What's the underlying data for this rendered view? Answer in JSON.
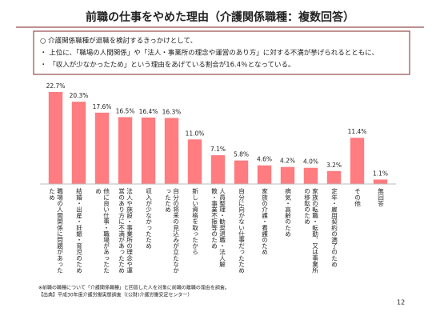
{
  "chart_data": {
    "type": "bar",
    "title": "前職の仕事をやめた理由（介護関係職種：複数回答）",
    "summary": [
      "○ 介護関係職種が退職を検討するきっかけとして、",
      "・ 上位に、「職場の人間関係」や「法人・事業所の理念や運営のあり方」に対する不満が挙げられるとともに、",
      "・ 「収入が少なかったため」という理由をあげている割合が16.4％となっている。"
    ],
    "categories": [
      "職場の人間関係に問題があったため",
      "結婚・出産・妊娠・育児のため",
      "他に良い仕事・職場があったため",
      "法人や施設・事業所の理念や運営のあり方に不満があったため",
      "収入が少なかったため",
      "自分の将来の見込みが立たなかったため",
      "新しい資格を取ったから",
      "人員整理・勧奨退職・法人解散・事業不振等のため",
      "自分に向かない仕事だったため",
      "家族の介護・看護のため",
      "病気・高齢のため",
      "家族の転職・転勤、又は事業所の移転のため",
      "定年・雇用契約の満了のため",
      "その他",
      "無回答"
    ],
    "values": [
      22.7,
      20.3,
      17.6,
      16.5,
      16.4,
      16.3,
      11.0,
      7.1,
      5.8,
      4.6,
      4.2,
      4.0,
      3.2,
      11.4,
      1.1
    ],
    "value_labels": [
      "22.7%",
      "20.3%",
      "17.6%",
      "16.5%",
      "16.4%",
      "16.3%",
      "11.0%",
      "7.1%",
      "5.8%",
      "4.6%",
      "4.2%",
      "4.0%",
      "3.2%",
      "11.4%",
      "1.1%"
    ],
    "color": "#ff7c80",
    "notes": [
      "※前職の職種について「介護関係職種」と回答した人を対象に前職の離職の理由を調査。",
      "【出典】平成30年度介護労働実態調査（(公財)介護労働安定センター）"
    ],
    "page_number": "12"
  }
}
